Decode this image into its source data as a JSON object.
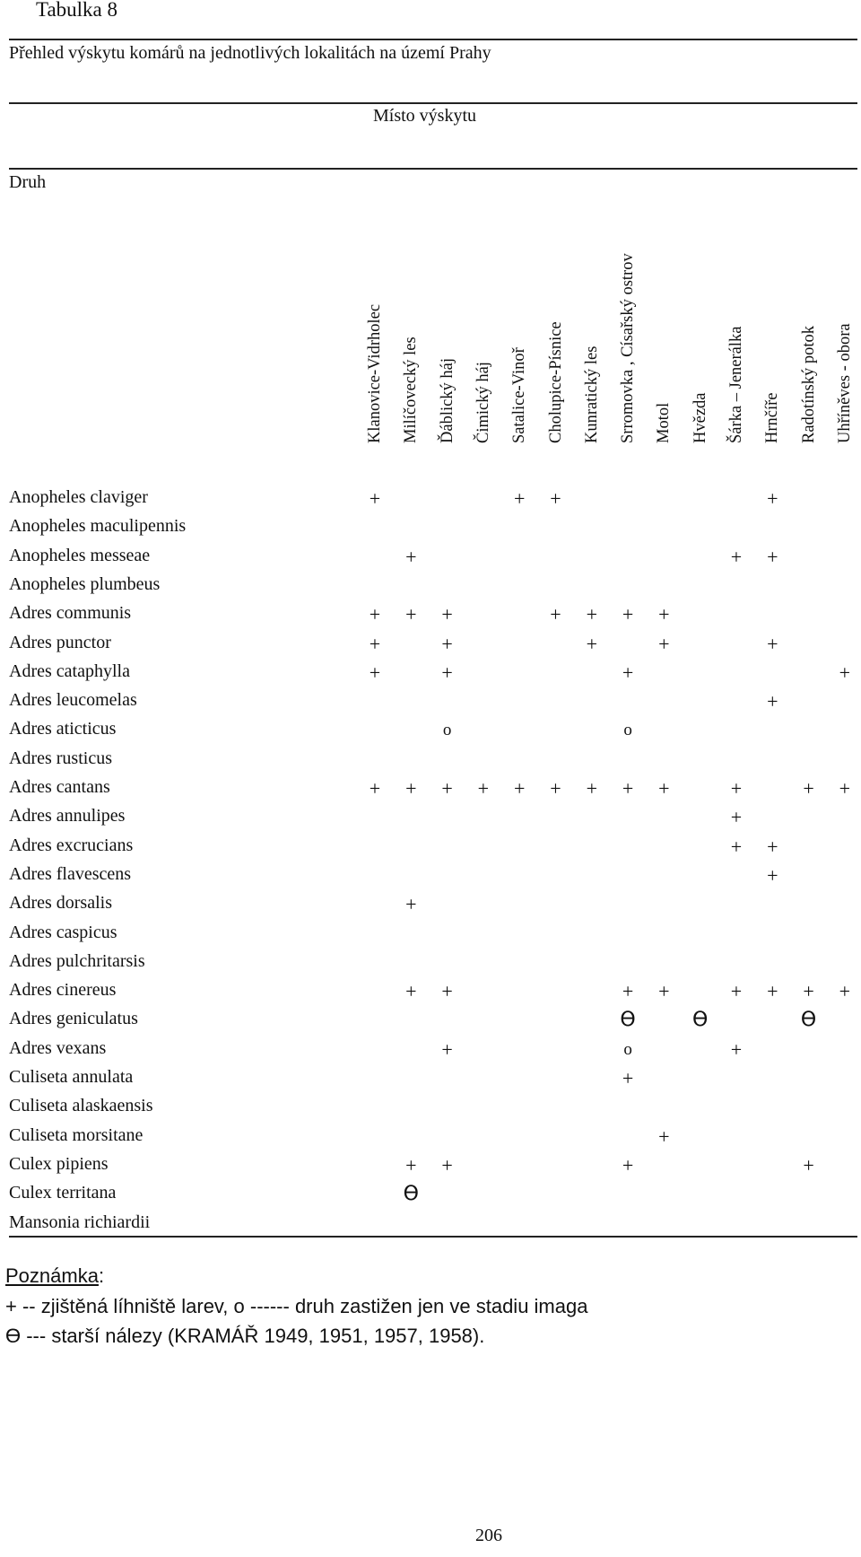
{
  "title": "Tabulka 8",
  "subtitle": "Přehled  výskytu komárů na jednotlivých lokalitách na území Prahy",
  "header": {
    "place": "Místo výskytu",
    "species": "Druh"
  },
  "localities": [
    "Klanovice-Vidrholec",
    "Milíčovecký les",
    "Ďáblický háj",
    "Čimický háj",
    "Satalice-Vinoř",
    "Cholupice-Písnice",
    "Kunratický les",
    "Srromovka , Císařský ostrov",
    "Motol",
    "Hvězda",
    "Šárka – Jenerálka",
    "Hrnčíře",
    "Radotínský potok",
    "Uhříněves - obora"
  ],
  "rows": [
    {
      "species": "Anopheles claviger",
      "cells": [
        "+",
        "",
        "",
        "",
        "+",
        "+",
        "",
        "",
        "",
        "",
        "",
        "+",
        "",
        ""
      ]
    },
    {
      "species": "Anopheles maculipennis",
      "cells": [
        "",
        "",
        "",
        "",
        "",
        "",
        "",
        "",
        "",
        "",
        "",
        "",
        "",
        ""
      ]
    },
    {
      "species": "Anopheles messeae",
      "cells": [
        "",
        "+",
        "",
        "",
        "",
        "",
        "",
        "",
        "",
        "",
        "+",
        "+",
        "",
        ""
      ]
    },
    {
      "species": "Anopheles plumbeus",
      "cells": [
        "",
        "",
        "",
        "",
        "",
        "",
        "",
        "",
        "",
        "",
        "",
        "",
        "",
        ""
      ]
    },
    {
      "species": "Adres communis",
      "cells": [
        "+",
        "+",
        "+",
        "",
        "",
        "+",
        "+",
        "+",
        "+",
        "",
        "",
        "",
        "",
        ""
      ]
    },
    {
      "species": "Adres punctor",
      "cells": [
        "+",
        "",
        "+",
        "",
        "",
        "",
        "+",
        "",
        "+",
        "",
        "",
        "+",
        "",
        ""
      ]
    },
    {
      "species": "Adres cataphylla",
      "cells": [
        "+",
        "",
        "+",
        "",
        "",
        "",
        "",
        "+",
        "",
        "",
        "",
        "",
        "",
        "+"
      ]
    },
    {
      "species": "Adres leucomelas",
      "cells": [
        "",
        "",
        "",
        "",
        "",
        "",
        "",
        "",
        "",
        "",
        "",
        "+",
        "",
        ""
      ]
    },
    {
      "species": "Adres aticticus",
      "cells": [
        "",
        "",
        "o",
        "",
        "",
        "",
        "",
        "o",
        "",
        "",
        "",
        "",
        "",
        ""
      ]
    },
    {
      "species": "Adres rusticus",
      "cells": [
        "",
        "",
        "",
        "",
        "",
        "",
        "",
        "",
        "",
        "",
        "",
        "",
        "",
        ""
      ]
    },
    {
      "species": "Adres cantans",
      "cells": [
        "+",
        "+",
        "+",
        "+",
        "+",
        "+",
        "+",
        "+",
        "+",
        "",
        "+",
        "",
        "+",
        "+"
      ]
    },
    {
      "species": "Adres annulipes",
      "cells": [
        "",
        "",
        "",
        "",
        "",
        "",
        "",
        "",
        "",
        "",
        "+",
        "",
        "",
        ""
      ]
    },
    {
      "species": "Adres excrucians",
      "cells": [
        "",
        "",
        "",
        "",
        "",
        "",
        "",
        "",
        "",
        "",
        "+",
        "+",
        "",
        ""
      ]
    },
    {
      "species": "Adres flavescens",
      "cells": [
        "",
        "",
        "",
        "",
        "",
        "",
        "",
        "",
        "",
        "",
        "",
        "+",
        "",
        ""
      ]
    },
    {
      "species": "Adres dorsalis",
      "cells": [
        "",
        "+",
        "",
        "",
        "",
        "",
        "",
        "",
        "",
        "",
        "",
        "",
        "",
        ""
      ]
    },
    {
      "species": "Adres caspicus",
      "cells": [
        "",
        "",
        "",
        "",
        "",
        "",
        "",
        "",
        "",
        "",
        "",
        "",
        "",
        ""
      ]
    },
    {
      "species": "Adres pulchritarsis",
      "cells": [
        "",
        "",
        "",
        "",
        "",
        "",
        "",
        "",
        "",
        "",
        "",
        "",
        "",
        ""
      ]
    },
    {
      "species": "Adres cinereus",
      "cells": [
        "",
        "+",
        "+",
        "",
        "",
        "",
        "",
        "+",
        "+",
        "",
        "+",
        "+",
        "+",
        "+"
      ]
    },
    {
      "species": "Adres geniculatus",
      "cells": [
        "",
        "",
        "",
        "",
        "",
        "",
        "",
        "ϴ",
        "",
        "ϴ",
        "",
        "",
        "ϴ",
        ""
      ]
    },
    {
      "species": "Adres vexans",
      "cells": [
        "",
        "",
        "+",
        "",
        "",
        "",
        "",
        "o",
        "",
        "",
        "+",
        "",
        "",
        ""
      ]
    },
    {
      "species": "Culiseta annulata",
      "cells": [
        "",
        "",
        "",
        "",
        "",
        "",
        "",
        "+",
        "",
        "",
        "",
        "",
        "",
        ""
      ]
    },
    {
      "species": "Culiseta alaskaensis",
      "cells": [
        "",
        "",
        "",
        "",
        "",
        "",
        "",
        "",
        "",
        "",
        "",
        "",
        "",
        ""
      ]
    },
    {
      "species": "Culiseta morsitane",
      "cells": [
        "",
        "",
        "",
        "",
        "",
        "",
        "",
        "",
        "+",
        "",
        "",
        "",
        "",
        ""
      ]
    },
    {
      "species": "Culex pipiens",
      "cells": [
        "",
        "+",
        "+",
        "",
        "",
        "",
        "",
        "+",
        "",
        "",
        "",
        "",
        "+",
        ""
      ]
    },
    {
      "species": "Culex territana",
      "cells": [
        "",
        "ϴ",
        "",
        "",
        "",
        "",
        "",
        "",
        "",
        "",
        "",
        "",
        "",
        ""
      ]
    },
    {
      "species": "Mansonia richiardii",
      "cells": [
        "",
        "",
        "",
        "",
        "",
        "",
        "",
        "",
        "",
        "",
        "",
        "",
        "",
        ""
      ]
    }
  ],
  "note": {
    "title": "Poznámka",
    "title_suffix": ":",
    "line1": "+ --  zjištěná líhniště larev, o  ------  druh zastižen jen ve stadiu imaga",
    "line2": "ϴ --- starší nálezy (KRAMÁŘ 1949, 1951, 1957, 1958)."
  },
  "page_number": "206"
}
